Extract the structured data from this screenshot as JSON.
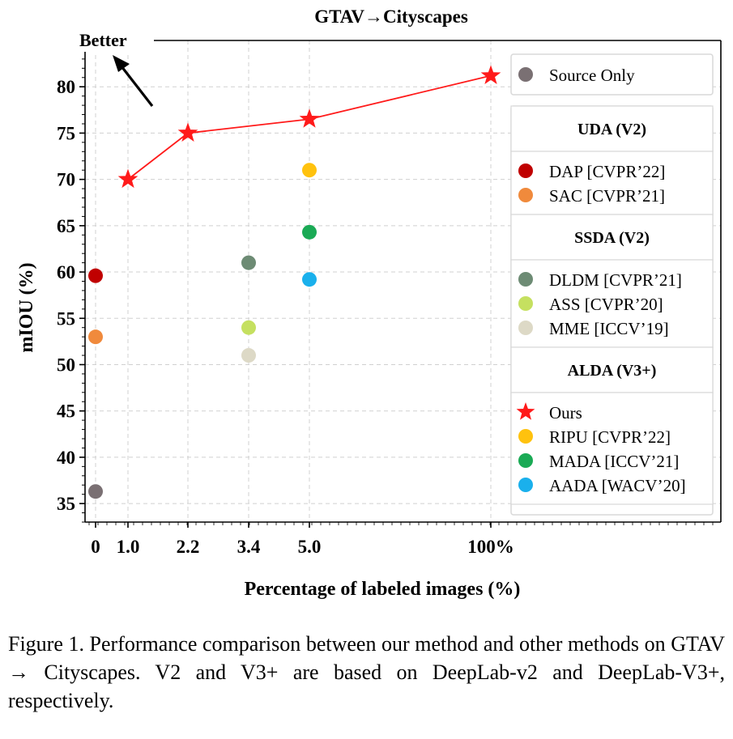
{
  "chart_data": {
    "type": "scatter",
    "title": "GTAV→Cityscapes",
    "annotation": "Better",
    "xlabel": "Percentage of labeled images (%)",
    "ylabel": "mIOU (%)",
    "ylim": [
      33,
      85
    ],
    "grid": true,
    "legend_placement": "right",
    "xtick_labels": [
      "0",
      "1.0",
      "2.2",
      "3.4",
      "5.0",
      "100%"
    ],
    "yticks": [
      35,
      40,
      45,
      50,
      55,
      60,
      65,
      70,
      75,
      80
    ],
    "series": [
      {
        "name": "Source Only",
        "group": "",
        "marker": "circle",
        "color": "#7a7073",
        "points": [
          {
            "x": "0",
            "y": 36.3
          }
        ]
      },
      {
        "name": "DAP [CVPR’22]",
        "group": "UDA (V2)",
        "marker": "circle",
        "color": "#c00000",
        "points": [
          {
            "x": "0",
            "y": 59.6
          }
        ]
      },
      {
        "name": "SAC [CVPR’21]",
        "group": "UDA (V2)",
        "marker": "circle",
        "color": "#f08a3c",
        "points": [
          {
            "x": "0",
            "y": 53.0
          }
        ]
      },
      {
        "name": "DLDM [CVPR’21]",
        "group": "SSDA (V2)",
        "marker": "circle",
        "color": "#6d8b74",
        "points": [
          {
            "x": "3.4",
            "y": 61.0
          }
        ]
      },
      {
        "name": "ASS [CVPR’20]",
        "group": "SSDA (V2)",
        "marker": "circle",
        "color": "#c5e060",
        "points": [
          {
            "x": "3.4",
            "y": 54.0
          }
        ]
      },
      {
        "name": "MME [ICCV’19]",
        "group": "SSDA (V2)",
        "marker": "circle",
        "color": "#ddd9c6",
        "points": [
          {
            "x": "3.4",
            "y": 51.0
          }
        ]
      },
      {
        "name": "Ours",
        "group": "ALDA (V3+)",
        "marker": "star",
        "color": "#ff1a1a",
        "line": true,
        "points": [
          {
            "x": "1.0",
            "y": 70.0
          },
          {
            "x": "2.2",
            "y": 75.0
          },
          {
            "x": "5.0",
            "y": 76.5
          },
          {
            "x": "100%",
            "y": 81.2
          }
        ]
      },
      {
        "name": "RIPU [CVPR’22]",
        "group": "ALDA (V3+)",
        "marker": "circle",
        "color": "#ffc20e",
        "points": [
          {
            "x": "5.0",
            "y": 71.0
          }
        ]
      },
      {
        "name": "MADA [ICCV’21]",
        "group": "ALDA (V3+)",
        "marker": "circle",
        "color": "#1aaa55",
        "points": [
          {
            "x": "5.0",
            "y": 64.3
          }
        ]
      },
      {
        "name": "AADA [WACV’20]",
        "group": "ALDA (V3+)",
        "marker": "circle",
        "color": "#1ab0ec",
        "points": [
          {
            "x": "5.0",
            "y": 59.2
          }
        ]
      }
    ],
    "legend_groups": [
      "UDA (V2)",
      "SSDA (V2)",
      "ALDA (V3+)"
    ]
  },
  "caption": "Figure 1. Performance comparison between our method and other methods on GTAV → Cityscapes.  V2 and V3+ are based on DeepLab-v2 and DeepLab-V3+, respectively."
}
